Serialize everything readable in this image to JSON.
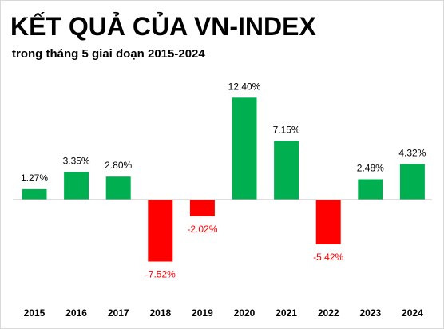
{
  "title": "KẾT QUẢ CỦA VN-INDEX",
  "subtitle": "trong tháng 5 giai đoạn 2015-2024",
  "colors": {
    "positive": "#00b050",
    "negative": "#ff0000",
    "axis": "#bfbfbf",
    "positive_label": "#000000",
    "negative_label": "#ff0000"
  },
  "chart_data": {
    "type": "bar",
    "title": "KẾT QUẢ CỦA VN-INDEX",
    "subtitle": "trong tháng 5 giai đoạn 2015-2024",
    "categories": [
      "2015",
      "2016",
      "2017",
      "2018",
      "2019",
      "2020",
      "2021",
      "2022",
      "2023",
      "2024"
    ],
    "values": [
      1.27,
      3.35,
      2.8,
      -7.52,
      -2.02,
      12.4,
      7.15,
      -5.42,
      2.48,
      4.32
    ],
    "labels": [
      "1.27%",
      "3.35%",
      "2.80%",
      "-7.52%",
      "-2.02%",
      "12.40%",
      "7.15%",
      "-5.42%",
      "2.48%",
      "4.32%"
    ],
    "unit": "%",
    "grid": false,
    "legend": "none"
  }
}
